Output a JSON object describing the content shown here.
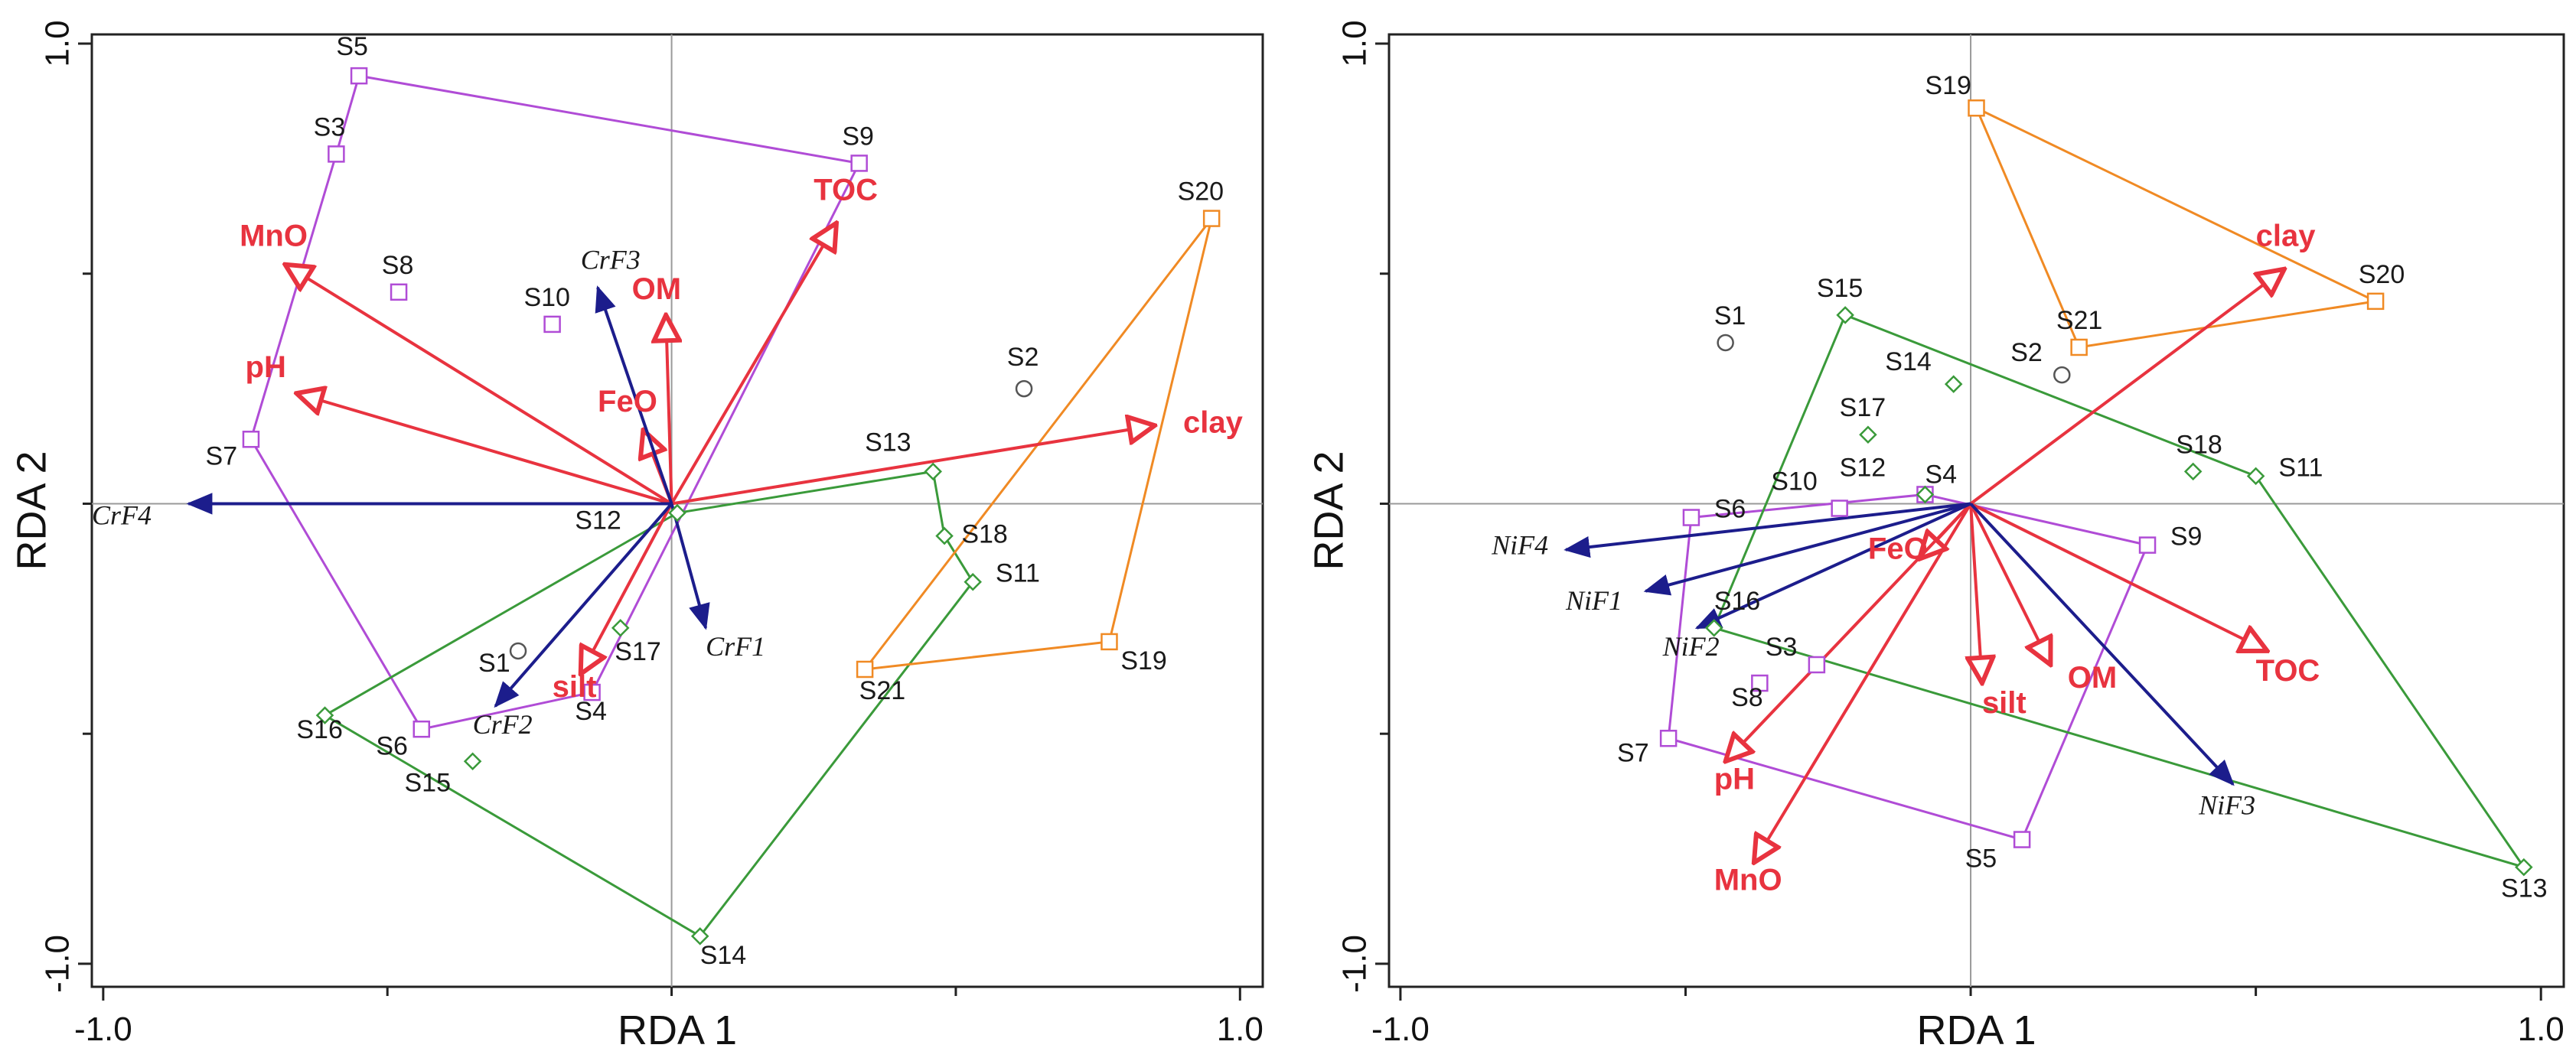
{
  "chart_data": [
    {
      "type": "scatter",
      "subtype": "rda-triplot",
      "xlabel": "RDA 1",
      "ylabel": "RDA 2",
      "xlim": [
        -1.02,
        1.04
      ],
      "ylim": [
        -1.05,
        1.02
      ],
      "xticks": [
        "-1.0",
        "1.0"
      ],
      "yticks": [
        "1.0",
        "-1.0"
      ],
      "group_colors": {
        "purple": "#b04cd6",
        "green": "#3a9a3a",
        "orange": "#f08a24",
        "grey": "#555555"
      },
      "samples": [
        {
          "label": "S1",
          "x": -0.27,
          "y": -0.32,
          "group": "grey",
          "marker": "circle",
          "lbl_dx": -0.07,
          "lbl_dy": -0.045
        },
        {
          "label": "S2",
          "x": 0.62,
          "y": 0.25,
          "group": "grey",
          "marker": "circle",
          "lbl_dx": -0.03,
          "lbl_dy": 0.05
        },
        {
          "label": "S3",
          "x": -0.59,
          "y": 0.76,
          "group": "purple",
          "marker": "square",
          "lbl_dx": -0.04,
          "lbl_dy": 0.04
        },
        {
          "label": "S4",
          "x": -0.14,
          "y": -0.41,
          "group": "purple",
          "marker": "square",
          "lbl_dx": -0.03,
          "lbl_dy": -0.06
        },
        {
          "label": "S5",
          "x": -0.55,
          "y": 0.93,
          "group": "purple",
          "marker": "square",
          "lbl_dx": -0.04,
          "lbl_dy": 0.045
        },
        {
          "label": "S6",
          "x": -0.44,
          "y": -0.49,
          "group": "purple",
          "marker": "square",
          "lbl_dx": -0.08,
          "lbl_dy": -0.055
        },
        {
          "label": "S7",
          "x": -0.74,
          "y": 0.14,
          "group": "purple",
          "marker": "square",
          "lbl_dx": -0.08,
          "lbl_dy": -0.055
        },
        {
          "label": "S8",
          "x": -0.48,
          "y": 0.46,
          "group": "purple",
          "marker": "square",
          "lbl_dx": -0.03,
          "lbl_dy": 0.04
        },
        {
          "label": "S9",
          "x": 0.33,
          "y": 0.74,
          "group": "purple",
          "marker": "square",
          "lbl_dx": -0.03,
          "lbl_dy": 0.04
        },
        {
          "label": "S10",
          "x": -0.21,
          "y": 0.39,
          "group": "purple",
          "marker": "square",
          "lbl_dx": -0.05,
          "lbl_dy": 0.04
        },
        {
          "label": "S11",
          "x": 0.53,
          "y": -0.17,
          "group": "green",
          "marker": "diamond",
          "lbl_dx": 0.04,
          "lbl_dy": 0.0
        },
        {
          "label": "S12",
          "x": 0.01,
          "y": -0.02,
          "group": "green",
          "marker": "diamond",
          "lbl_dx": -0.18,
          "lbl_dy": -0.035
        },
        {
          "label": "S13",
          "x": 0.46,
          "y": 0.07,
          "group": "green",
          "marker": "diamond",
          "lbl_dx": -0.12,
          "lbl_dy": 0.045
        },
        {
          "label": "S14",
          "x": 0.05,
          "y": -0.94,
          "group": "green",
          "marker": "diamond",
          "lbl_dx": 0.0,
          "lbl_dy": -0.06
        },
        {
          "label": "S15",
          "x": -0.35,
          "y": -0.56,
          "group": "green",
          "marker": "diamond",
          "lbl_dx": -0.12,
          "lbl_dy": -0.065
        },
        {
          "label": "S16",
          "x": -0.61,
          "y": -0.46,
          "group": "green",
          "marker": "diamond",
          "lbl_dx": -0.05,
          "lbl_dy": -0.05
        },
        {
          "label": "S17",
          "x": -0.09,
          "y": -0.27,
          "group": "green",
          "marker": "diamond",
          "lbl_dx": -0.01,
          "lbl_dy": -0.07
        },
        {
          "label": "S18",
          "x": 0.48,
          "y": -0.07,
          "group": "green",
          "marker": "diamond",
          "lbl_dx": 0.03,
          "lbl_dy": -0.015
        },
        {
          "label": "S19",
          "x": 0.77,
          "y": -0.3,
          "group": "orange",
          "marker": "square",
          "lbl_dx": 0.02,
          "lbl_dy": -0.06
        },
        {
          "label": "S20",
          "x": 0.95,
          "y": 0.62,
          "group": "orange",
          "marker": "square",
          "lbl_dx": -0.06,
          "lbl_dy": 0.04
        },
        {
          "label": "S21",
          "x": 0.34,
          "y": -0.36,
          "group": "orange",
          "marker": "square",
          "lbl_dx": -0.01,
          "lbl_dy": -0.065
        }
      ],
      "hulls": [
        {
          "group": "purple",
          "points": [
            "S5",
            "S9",
            "S4",
            "S6",
            "S7",
            "S3"
          ]
        },
        {
          "group": "green",
          "points": [
            "S13",
            "S18",
            "S11",
            "S14",
            "S16",
            "S12"
          ]
        },
        {
          "group": "orange",
          "points": [
            "S20",
            "S19",
            "S21"
          ]
        }
      ],
      "env_vectors": [
        {
          "label": "TOC",
          "x": 0.29,
          "y": 0.61,
          "lbl_dx": -0.04,
          "lbl_dy": 0.05
        },
        {
          "label": "MnO",
          "x": -0.68,
          "y": 0.52,
          "lbl_dx": -0.08,
          "lbl_dy": 0.04
        },
        {
          "label": "pH",
          "x": -0.66,
          "y": 0.24,
          "lbl_dx": -0.09,
          "lbl_dy": 0.035
        },
        {
          "label": "OM",
          "x": -0.01,
          "y": 0.41,
          "lbl_dx": -0.06,
          "lbl_dy": 0.035
        },
        {
          "label": "FeO",
          "x": -0.05,
          "y": 0.16,
          "lbl_dx": -0.08,
          "lbl_dy": 0.04
        },
        {
          "label": "clay",
          "x": 0.85,
          "y": 0.17,
          "lbl_dx": 0.05,
          "lbl_dy": -0.015
        },
        {
          "label": "silt",
          "x": -0.16,
          "y": -0.37,
          "lbl_dx": -0.05,
          "lbl_dy": -0.05
        }
      ],
      "species_vectors": [
        {
          "label": "CrF1",
          "x": 0.06,
          "y": -0.27,
          "lbl_dx": 0.0,
          "lbl_dy": -0.06
        },
        {
          "label": "CrF2",
          "x": -0.31,
          "y": -0.44,
          "lbl_dx": -0.04,
          "lbl_dy": -0.06
        },
        {
          "label": "CrF3",
          "x": -0.13,
          "y": 0.47,
          "lbl_dx": -0.03,
          "lbl_dy": 0.04
        },
        {
          "label": "CrF4",
          "x": -0.85,
          "y": 0.0,
          "lbl_dx": -0.17,
          "lbl_dy": -0.045
        }
      ]
    },
    {
      "type": "scatter",
      "subtype": "rda-triplot",
      "xlabel": "RDA 1",
      "ylabel": "RDA 2",
      "xlim": [
        -1.02,
        1.04
      ],
      "ylim": [
        -1.05,
        1.02
      ],
      "xticks": [
        "-1.0",
        "1.0"
      ],
      "yticks": [
        "1.0",
        "-1.0"
      ],
      "group_colors": {
        "purple": "#b04cd6",
        "green": "#3a9a3a",
        "orange": "#f08a24",
        "grey": "#555555"
      },
      "samples": [
        {
          "label": "S1",
          "x": -0.43,
          "y": 0.35,
          "group": "grey",
          "marker": "circle",
          "lbl_dx": -0.02,
          "lbl_dy": 0.04
        },
        {
          "label": "S2",
          "x": 0.16,
          "y": 0.28,
          "group": "grey",
          "marker": "circle",
          "lbl_dx": -0.09,
          "lbl_dy": 0.03
        },
        {
          "label": "S3",
          "x": -0.27,
          "y": -0.35,
          "group": "purple",
          "marker": "square",
          "lbl_dx": -0.09,
          "lbl_dy": 0.02
        },
        {
          "label": "S4",
          "x": -0.08,
          "y": 0.02,
          "group": "purple",
          "marker": "square",
          "lbl_dx": 0.0,
          "lbl_dy": 0.025
        },
        {
          "label": "S5",
          "x": 0.09,
          "y": -0.73,
          "group": "purple",
          "marker": "square",
          "lbl_dx": -0.1,
          "lbl_dy": -0.06
        },
        {
          "label": "S6",
          "x": -0.49,
          "y": -0.03,
          "group": "purple",
          "marker": "square",
          "lbl_dx": 0.04,
          "lbl_dy": 0.0
        },
        {
          "label": "S7",
          "x": -0.53,
          "y": -0.51,
          "group": "purple",
          "marker": "square",
          "lbl_dx": -0.09,
          "lbl_dy": -0.05
        },
        {
          "label": "S8",
          "x": -0.37,
          "y": -0.39,
          "group": "purple",
          "marker": "square",
          "lbl_dx": -0.05,
          "lbl_dy": -0.05
        },
        {
          "label": "S9",
          "x": 0.31,
          "y": -0.09,
          "group": "purple",
          "marker": "square",
          "lbl_dx": 0.04,
          "lbl_dy": 0.0
        },
        {
          "label": "S10",
          "x": -0.23,
          "y": -0.01,
          "group": "purple",
          "marker": "square",
          "lbl_dx": -0.12,
          "lbl_dy": 0.04
        },
        {
          "label": "S11",
          "x": 0.5,
          "y": 0.06,
          "group": "green",
          "marker": "diamond",
          "lbl_dx": 0.04,
          "lbl_dy": 0.0
        },
        {
          "label": "S12",
          "x": -0.08,
          "y": 0.02,
          "group": "green",
          "marker": "diamond",
          "lbl_dx": -0.15,
          "lbl_dy": 0.04
        },
        {
          "label": "S13",
          "x": 0.97,
          "y": -0.79,
          "group": "green",
          "marker": "diamond",
          "lbl_dx": -0.04,
          "lbl_dy": -0.065
        },
        {
          "label": "S14",
          "x": -0.03,
          "y": 0.26,
          "group": "green",
          "marker": "diamond",
          "lbl_dx": -0.12,
          "lbl_dy": 0.03
        },
        {
          "label": "S15",
          "x": -0.22,
          "y": 0.41,
          "group": "green",
          "marker": "diamond",
          "lbl_dx": -0.05,
          "lbl_dy": 0.04
        },
        {
          "label": "S16",
          "x": -0.45,
          "y": -0.27,
          "group": "green",
          "marker": "diamond",
          "lbl_dx": 0.0,
          "lbl_dy": 0.04
        },
        {
          "label": "S17",
          "x": -0.18,
          "y": 0.15,
          "group": "green",
          "marker": "diamond",
          "lbl_dx": -0.05,
          "lbl_dy": 0.04
        },
        {
          "label": "S18",
          "x": 0.39,
          "y": 0.07,
          "group": "green",
          "marker": "diamond",
          "lbl_dx": -0.03,
          "lbl_dy": 0.04
        },
        {
          "label": "S19",
          "x": 0.01,
          "y": 0.86,
          "group": "orange",
          "marker": "square",
          "lbl_dx": -0.09,
          "lbl_dy": 0.03
        },
        {
          "label": "S20",
          "x": 0.71,
          "y": 0.44,
          "group": "orange",
          "marker": "square",
          "lbl_dx": -0.03,
          "lbl_dy": 0.04
        },
        {
          "label": "S21",
          "x": 0.19,
          "y": 0.34,
          "group": "orange",
          "marker": "square",
          "lbl_dx": -0.04,
          "lbl_dy": 0.04
        }
      ],
      "hulls": [
        {
          "group": "purple",
          "points": [
            "S6",
            "S4",
            "S9",
            "S5",
            "S7"
          ]
        },
        {
          "group": "green",
          "points": [
            "S15",
            "S11",
            "S13",
            "S16"
          ]
        },
        {
          "group": "orange",
          "points": [
            "S19",
            "S20",
            "S21"
          ]
        }
      ],
      "env_vectors": [
        {
          "label": "clay",
          "x": 0.55,
          "y": 0.51,
          "lbl_dx": -0.05,
          "lbl_dy": 0.05
        },
        {
          "label": "TOC",
          "x": 0.52,
          "y": -0.32,
          "lbl_dx": -0.02,
          "lbl_dy": -0.065
        },
        {
          "label": "silt",
          "x": 0.02,
          "y": -0.39,
          "lbl_dx": 0.0,
          "lbl_dy": -0.065
        },
        {
          "label": "OM",
          "x": 0.14,
          "y": -0.35,
          "lbl_dx": 0.03,
          "lbl_dy": -0.05
        },
        {
          "label": "FeO",
          "x": -0.09,
          "y": -0.12,
          "lbl_dx": -0.09,
          "lbl_dy": 0.0
        },
        {
          "label": "pH",
          "x": -0.43,
          "y": -0.56,
          "lbl_dx": -0.02,
          "lbl_dy": -0.06
        },
        {
          "label": "MnO",
          "x": -0.38,
          "y": -0.78,
          "lbl_dx": -0.07,
          "lbl_dy": -0.06
        }
      ],
      "species_vectors": [
        {
          "label": "NiF4",
          "x": -0.71,
          "y": -0.1,
          "lbl_dx": -0.13,
          "lbl_dy": -0.01
        },
        {
          "label": "NiF1",
          "x": -0.57,
          "y": -0.19,
          "lbl_dx": -0.14,
          "lbl_dy": -0.04
        },
        {
          "label": "NiF2",
          "x": -0.48,
          "y": -0.27,
          "lbl_dx": -0.06,
          "lbl_dy": -0.06
        },
        {
          "label": "NiF3",
          "x": 0.46,
          "y": -0.61,
          "lbl_dx": -0.06,
          "lbl_dy": -0.065
        }
      ]
    }
  ]
}
